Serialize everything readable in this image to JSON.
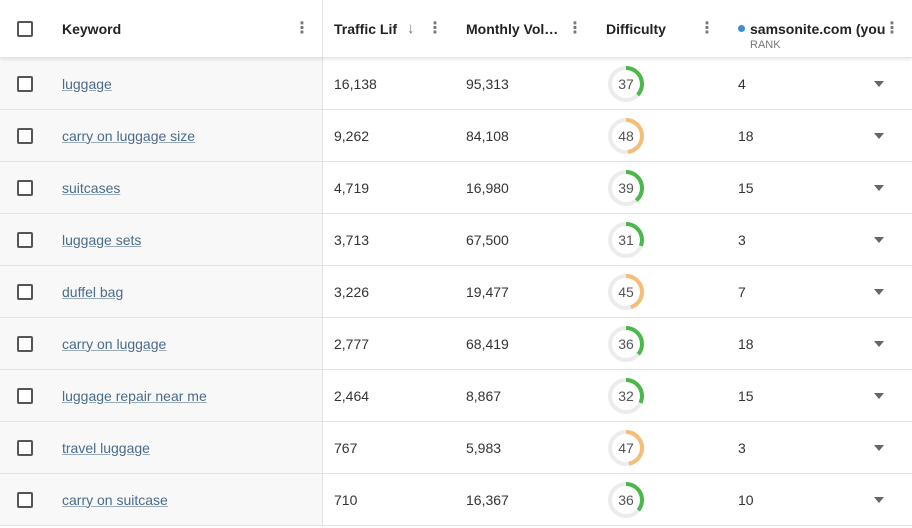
{
  "header": {
    "keyword": "Keyword",
    "traffic": "Traffic Lif",
    "volume": "Monthly Vol…",
    "difficulty": "Difficulty",
    "domain": "samsonite.com (you",
    "rank": "RANK"
  },
  "rows": [
    {
      "keyword": "luggage",
      "traffic": "16,138",
      "volume": "95,313",
      "difficulty": 37,
      "difficulty_color": "#4cb84c",
      "rank": 4
    },
    {
      "keyword": "carry on luggage size",
      "traffic": "9,262",
      "volume": "84,108",
      "difficulty": 48,
      "difficulty_color": "#f5bd77",
      "rank": 18
    },
    {
      "keyword": "suitcases",
      "traffic": "4,719",
      "volume": "16,980",
      "difficulty": 39,
      "difficulty_color": "#4cb84c",
      "rank": 15
    },
    {
      "keyword": "luggage sets",
      "traffic": "3,713",
      "volume": "67,500",
      "difficulty": 31,
      "difficulty_color": "#4cb84c",
      "rank": 3
    },
    {
      "keyword": "duffel bag",
      "traffic": "3,226",
      "volume": "19,477",
      "difficulty": 45,
      "difficulty_color": "#f5bd77",
      "rank": 7
    },
    {
      "keyword": "carry on luggage",
      "traffic": "2,777",
      "volume": "68,419",
      "difficulty": 36,
      "difficulty_color": "#4cb84c",
      "rank": 18
    },
    {
      "keyword": "luggage repair near me",
      "traffic": "2,464",
      "volume": "8,867",
      "difficulty": 32,
      "difficulty_color": "#4cb84c",
      "rank": 15
    },
    {
      "keyword": "travel luggage",
      "traffic": "767",
      "volume": "5,983",
      "difficulty": 47,
      "difficulty_color": "#f5bd77",
      "rank": 3
    },
    {
      "keyword": "carry on suitcase",
      "traffic": "710",
      "volume": "16,367",
      "difficulty": 36,
      "difficulty_color": "#4cb84c",
      "rank": 10
    }
  ]
}
